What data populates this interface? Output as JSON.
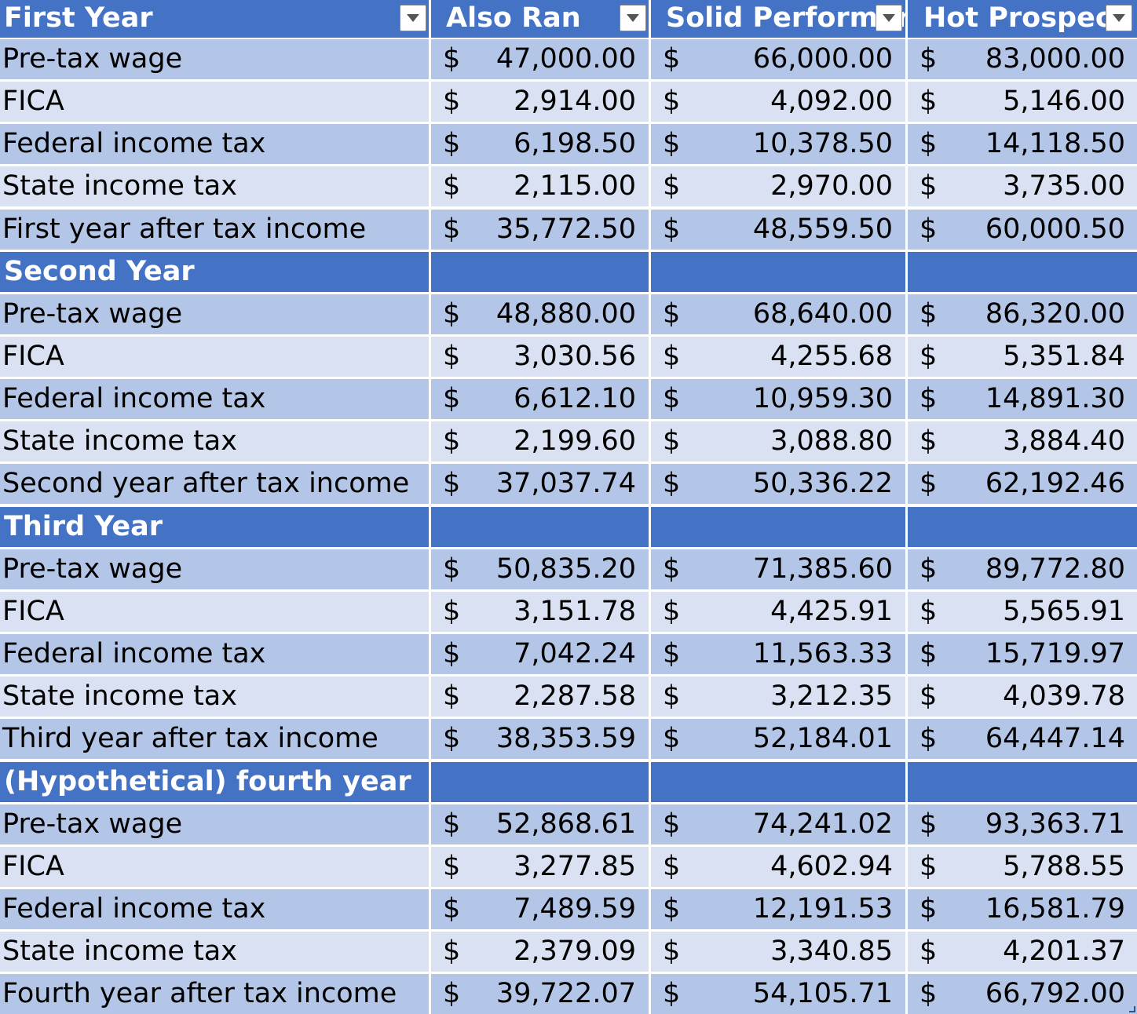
{
  "table": {
    "columns": [
      "First Year",
      "Also Ran",
      "Solid Performer",
      "Hot Prospect"
    ],
    "currency_symbol": "$",
    "sections": [
      {
        "title": "First Year",
        "rows": [
          {
            "label": "Pre-tax wage",
            "values": [
              "47,000.00",
              "66,000.00",
              "83,000.00"
            ]
          },
          {
            "label": "FICA",
            "values": [
              "2,914.00",
              "4,092.00",
              "5,146.00"
            ]
          },
          {
            "label": "Federal income tax",
            "values": [
              "6,198.50",
              "10,378.50",
              "14,118.50"
            ]
          },
          {
            "label": "State income tax",
            "values": [
              "2,115.00",
              "2,970.00",
              "3,735.00"
            ]
          },
          {
            "label": "First year after tax income",
            "values": [
              "35,772.50",
              "48,559.50",
              "60,000.50"
            ]
          }
        ]
      },
      {
        "title": "Second Year",
        "rows": [
          {
            "label": "Pre-tax wage",
            "values": [
              "48,880.00",
              "68,640.00",
              "86,320.00"
            ]
          },
          {
            "label": "FICA",
            "values": [
              "3,030.56",
              "4,255.68",
              "5,351.84"
            ]
          },
          {
            "label": "Federal income tax",
            "values": [
              "6,612.10",
              "10,959.30",
              "14,891.30"
            ]
          },
          {
            "label": "State income tax",
            "values": [
              "2,199.60",
              "3,088.80",
              "3,884.40"
            ]
          },
          {
            "label": "Second year after tax income",
            "values": [
              "37,037.74",
              "50,336.22",
              "62,192.46"
            ]
          }
        ]
      },
      {
        "title": "Third Year",
        "rows": [
          {
            "label": "Pre-tax wage",
            "values": [
              "50,835.20",
              "71,385.60",
              "89,772.80"
            ]
          },
          {
            "label": "FICA",
            "values": [
              "3,151.78",
              "4,425.91",
              "5,565.91"
            ]
          },
          {
            "label": "Federal income tax",
            "values": [
              "7,042.24",
              "11,563.33",
              "15,719.97"
            ]
          },
          {
            "label": "State income tax",
            "values": [
              "2,287.58",
              "3,212.35",
              "4,039.78"
            ]
          },
          {
            "label": "Third year after tax income",
            "values": [
              "38,353.59",
              "52,184.01",
              "64,447.14"
            ]
          }
        ]
      },
      {
        "title": "(Hypothetical) fourth year",
        "rows": [
          {
            "label": "Pre-tax wage",
            "values": [
              "52,868.61",
              "74,241.02",
              "93,363.71"
            ]
          },
          {
            "label": "FICA",
            "values": [
              "3,277.85",
              "4,602.94",
              "5,788.55"
            ]
          },
          {
            "label": "Federal income tax",
            "values": [
              "7,489.59",
              "12,191.53",
              "16,581.79"
            ]
          },
          {
            "label": "State income tax",
            "values": [
              "2,379.09",
              "3,340.85",
              "4,201.37"
            ]
          },
          {
            "label": "Fourth year after tax income",
            "values": [
              "39,722.07",
              "54,105.71",
              "66,792.00"
            ]
          }
        ]
      }
    ]
  },
  "icons": {
    "filter": "filter-dropdown-icon",
    "resize": "table-resize-handle-icon"
  },
  "colors": {
    "header": "#4472C4",
    "band_dark": "#B4C6E7",
    "band_light": "#D9E1F2",
    "header_text": "#FFFFFF",
    "body_text": "#000000"
  }
}
